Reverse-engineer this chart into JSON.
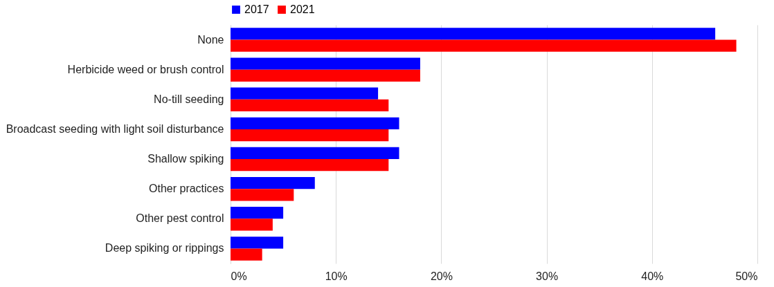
{
  "chart_data": {
    "type": "bar",
    "orientation": "horizontal",
    "categories": [
      "None",
      "Herbicide weed or brush control",
      "No-till seeding",
      "Broadcast seeding with light soil disturbance",
      "Shallow spiking",
      "Other practices",
      "Other pest control",
      "Deep spiking or rippings"
    ],
    "series": [
      {
        "name": "2017",
        "color": "#0000ff",
        "values": [
          46,
          18,
          14,
          16,
          16,
          8,
          5,
          5
        ]
      },
      {
        "name": "2021",
        "color": "#ff0000",
        "values": [
          48,
          18,
          15,
          15,
          15,
          6,
          4,
          3
        ]
      }
    ],
    "xlim": [
      0,
      50
    ],
    "xticks": [
      {
        "value": 0,
        "label": "0%"
      },
      {
        "value": 10,
        "label": "10%"
      },
      {
        "value": 20,
        "label": "20%"
      },
      {
        "value": 30,
        "label": "30%"
      },
      {
        "value": 40,
        "label": "40%"
      },
      {
        "value": 50,
        "label": "50%"
      }
    ],
    "grid": "x",
    "legend": "top"
  }
}
